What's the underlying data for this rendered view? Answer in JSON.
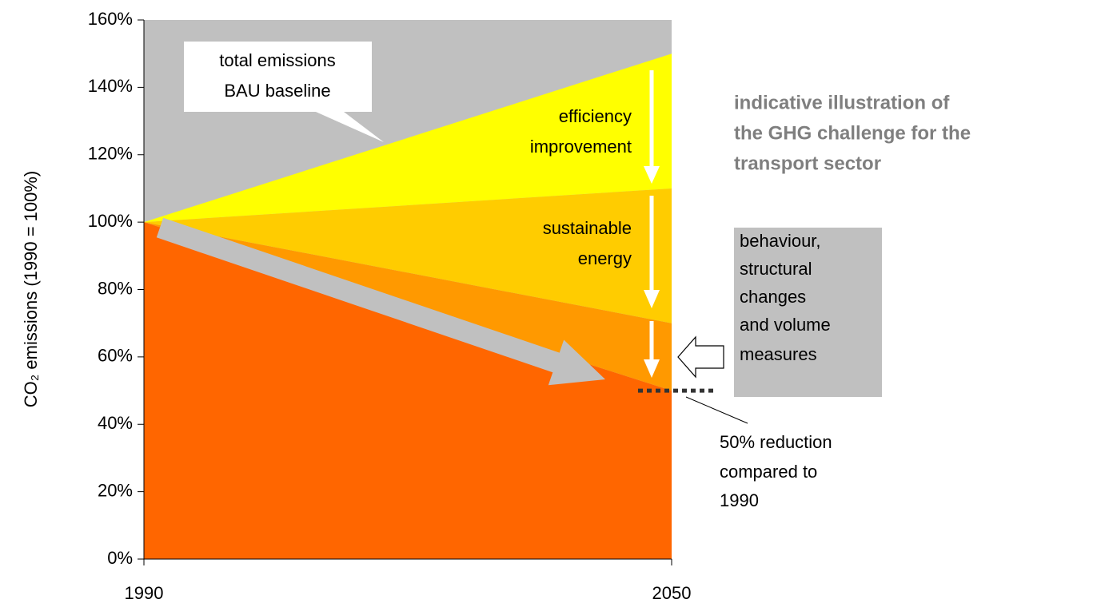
{
  "chart_data": {
    "type": "area",
    "stacked": true,
    "x": [
      1990,
      2050
    ],
    "xlim": [
      1990,
      2050
    ],
    "xticks": [
      1990,
      2050
    ],
    "ylim": [
      0,
      160
    ],
    "yticks": [
      {
        "value": 0,
        "label": "0%"
      },
      {
        "value": 20,
        "label": "20%"
      },
      {
        "value": 40,
        "label": "40%"
      },
      {
        "value": 60,
        "label": "60%"
      },
      {
        "value": 80,
        "label": "80%"
      },
      {
        "value": 100,
        "label": "100%"
      },
      {
        "value": 120,
        "label": "120%"
      },
      {
        "value": 140,
        "label": "140%"
      },
      {
        "value": 160,
        "label": "160%"
      }
    ],
    "y_label": "CO₂ emissions   (1990 = 100%)",
    "background": "#c0c0c0",
    "series": [
      {
        "color": "#ff6600",
        "values": [
          100,
          50
        ]
      },
      {
        "color": "#ff9900",
        "values": [
          0,
          20
        ]
      },
      {
        "color": "#ffcc00",
        "values": [
          0,
          40
        ]
      },
      {
        "color": "#ffff00",
        "values": [
          0,
          40
        ]
      }
    ],
    "title_lines": [
      "indicative illustration of",
      "the GHG challenge for the",
      "transport sector"
    ],
    "annotations": {
      "baseline": [
        "total emissions",
        "BAU baseline"
      ],
      "efficiency": [
        "efficiency",
        "improvement"
      ],
      "energy": [
        "sustainable",
        "energy"
      ],
      "behaviour": [
        "behaviour,",
        "structural",
        "changes",
        "and volume",
        "measures"
      ],
      "target": [
        "50% reduction",
        "compared to",
        "1990"
      ]
    }
  }
}
